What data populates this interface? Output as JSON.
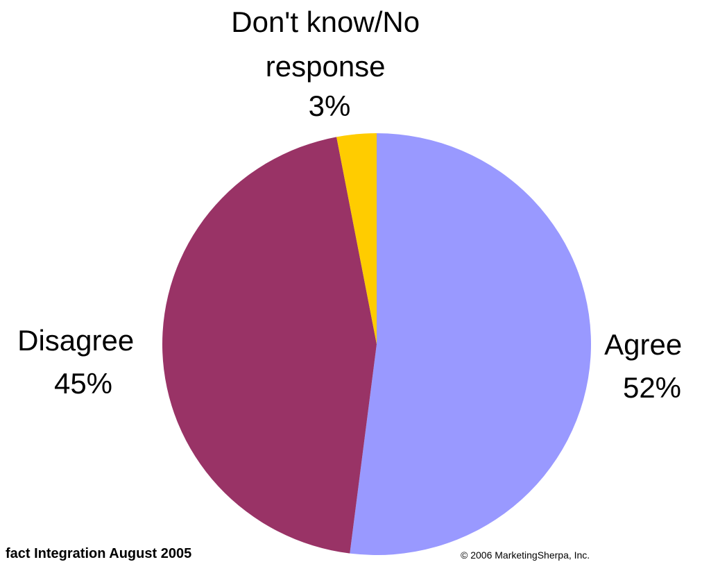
{
  "chart_data": {
    "type": "pie",
    "slices": [
      {
        "label": "Agree",
        "value": 52,
        "value_label": "52%",
        "color": "#9999ff"
      },
      {
        "label": "Disagree",
        "value": 45,
        "value_label": "45%",
        "color": "#993366"
      },
      {
        "label": "Don't know/No response",
        "value": 3,
        "value_label": "3%",
        "color": "#ffcc00"
      }
    ],
    "label_lines": {
      "agree": [
        "Agree",
        "52%"
      ],
      "disagree": [
        "Disagree",
        "45%"
      ],
      "dontknow": [
        "Don't know/No",
        "response",
        "3%"
      ]
    },
    "legend": "none"
  },
  "footer": {
    "source": "fact Integration August 2005",
    "copyright": "© 2006 MarketingSherpa, Inc."
  }
}
